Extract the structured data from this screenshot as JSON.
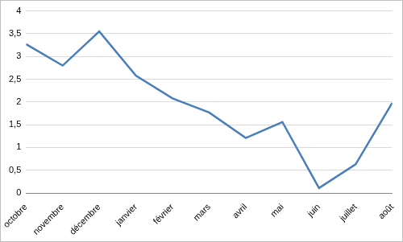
{
  "chart_data": {
    "type": "line",
    "categories": [
      "octobre",
      "novembre",
      "décembre",
      "janvier",
      "février",
      "mars",
      "avril",
      "mai",
      "juin",
      "juillet",
      "août"
    ],
    "values": [
      3.27,
      2.8,
      3.55,
      2.58,
      2.08,
      1.77,
      1.21,
      1.56,
      0.11,
      0.63,
      1.98
    ],
    "color": "#4a7ebb",
    "ylim": [
      0,
      4
    ],
    "yticks": [
      0,
      {
        "value": 0.5,
        "label": "0,5"
      },
      1,
      {
        "value": 1.5,
        "label": "1,5"
      },
      2,
      {
        "value": 2.5,
        "label": "2,5"
      },
      3,
      {
        "value": 3.5,
        "label": "3,5"
      },
      4
    ],
    "grid": true
  }
}
